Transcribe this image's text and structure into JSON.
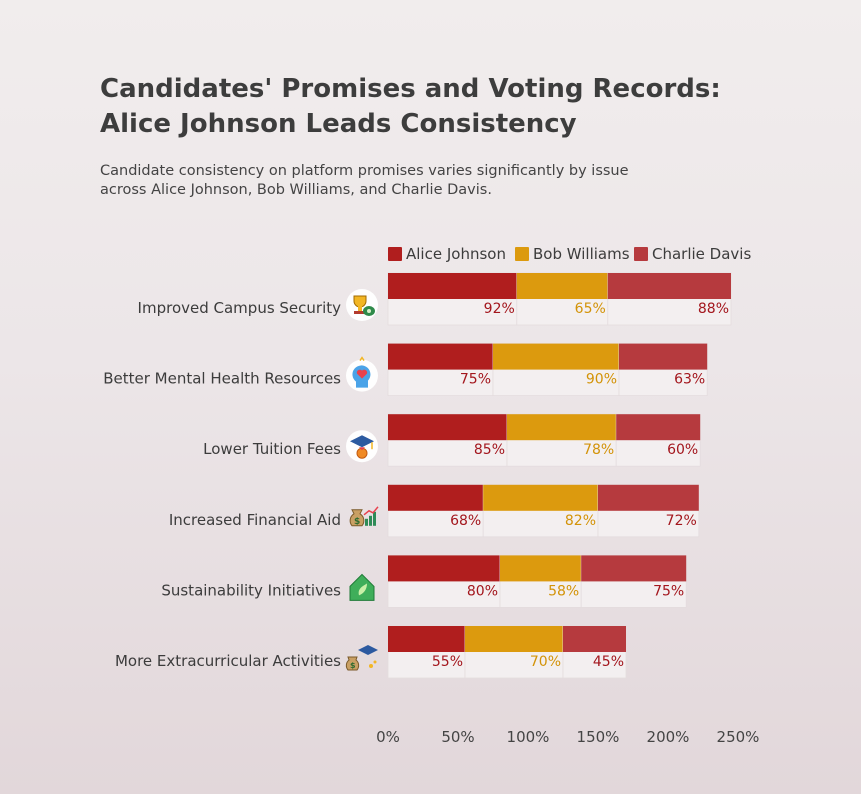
{
  "title": "Candidates' Promises and Voting Records: Alice Johnson Leads Consistency",
  "subtitle": "Candidate consistency on platform promises varies significantly by issue across Alice Johnson, Bob Williams, and Charlie Davis.",
  "chart_data": {
    "type": "bar",
    "orientation": "horizontal",
    "stacked": true,
    "categories": [
      "Improved Campus Security",
      "Better Mental Health Resources",
      "Lower Tuition Fees",
      "Increased Financial Aid",
      "Sustainability Initiatives",
      "More Extracurricular Activities"
    ],
    "category_icons": [
      "trophy-money-icon",
      "mind-heart-icon",
      "graduation-medal-icon",
      "money-bag-chart-icon",
      "eco-house-icon",
      "grad-cap-money-icon"
    ],
    "series": [
      {
        "name": "Alice Johnson",
        "color": "#b01e1e",
        "label_color": "#a3161d",
        "values": [
          92,
          75,
          85,
          68,
          80,
          55
        ]
      },
      {
        "name": "Bob Williams",
        "color": "#dc9a0e",
        "label_color": "#d39308",
        "values": [
          65,
          90,
          78,
          82,
          58,
          70
        ]
      },
      {
        "name": "Charlie Davis",
        "color": "#b63a3e",
        "label_color": "#a3161d",
        "values": [
          88,
          63,
          60,
          72,
          75,
          45
        ]
      }
    ],
    "value_labels": [
      [
        "92%",
        "65%",
        "88%"
      ],
      [
        "75%",
        "90%",
        "63%"
      ],
      [
        "85%",
        "78%",
        "60%"
      ],
      [
        "68%",
        "82%",
        "72%"
      ],
      [
        "80%",
        "58%",
        "75%"
      ],
      [
        "55%",
        "70%",
        "45%"
      ]
    ],
    "xlim": [
      0,
      250
    ],
    "xticks": [
      0,
      50,
      100,
      150,
      200,
      250
    ],
    "xtick_labels": [
      "0%",
      "50%",
      "100%",
      "150%",
      "200%",
      "250%"
    ],
    "xlabel": "",
    "ylabel": "",
    "grid": false,
    "legend_position": "top-right",
    "legend": [
      "Alice Johnson",
      "Bob Williams",
      "Charlie Davis"
    ]
  }
}
